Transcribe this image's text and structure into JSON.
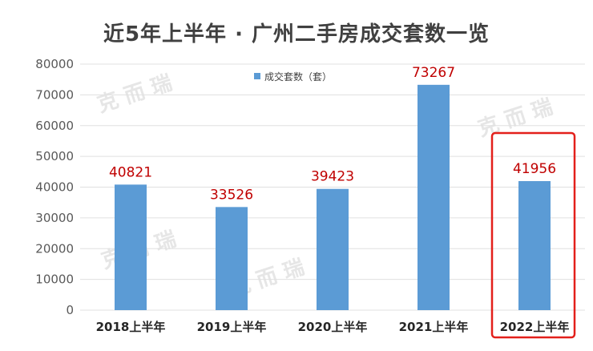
{
  "chart_data": {
    "type": "bar",
    "title": "近5年上半年 · 广州二手房成交套数一览",
    "categories": [
      "2018上半年",
      "2019上半年",
      "2020上半年",
      "2021上半年",
      "2022上半年"
    ],
    "series": [
      {
        "name": "成交套数（套）",
        "values": [
          40821,
          33526,
          39423,
          73267,
          41956
        ]
      }
    ],
    "ylim": [
      0,
      80000
    ],
    "yticks": [
      0,
      10000,
      20000,
      30000,
      40000,
      50000,
      60000,
      70000,
      80000
    ],
    "grid": true,
    "legend_position": "top-center",
    "highlight_category": "2022上半年",
    "colors": {
      "bar": "#5b9bd5",
      "label": "#c00000",
      "highlight": "#e3201b",
      "grid": "#e0e0e0"
    },
    "watermark": "克而瑞"
  }
}
